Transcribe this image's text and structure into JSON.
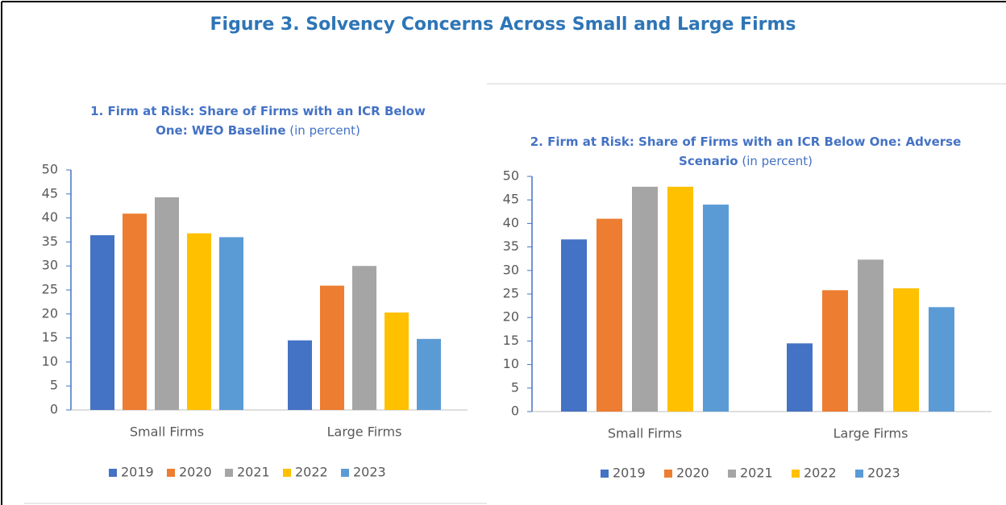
{
  "title": "Figure 3. Solvency Concerns Across Small and Large Firms",
  "chart_data": [
    {
      "type": "bar",
      "title": "1. Firm at Risk: Share of Firms with an ICR Below One: WEO Baseline",
      "subtitle": "(in percent)",
      "categories": [
        "Small Firms",
        "Large Firms"
      ],
      "series": [
        {
          "name": "2019",
          "color": "#4472c4",
          "values": [
            36.4,
            14.5
          ]
        },
        {
          "name": "2020",
          "color": "#ed7d31",
          "values": [
            40.9,
            25.9
          ]
        },
        {
          "name": "2021",
          "color": "#a5a5a5",
          "values": [
            44.3,
            30.0
          ]
        },
        {
          "name": "2022",
          "color": "#ffc000",
          "values": [
            36.8,
            20.3
          ]
        },
        {
          "name": "2023",
          "color": "#5b9bd5",
          "values": [
            36.0,
            14.8
          ]
        }
      ],
      "ylim": [
        0,
        50
      ],
      "yticks": [
        0,
        5,
        10,
        15,
        20,
        25,
        30,
        35,
        40,
        45,
        50
      ],
      "legend": "bottom"
    },
    {
      "type": "bar",
      "title": "2. Firm at Risk: Share of Firms with an ICR Below One: Adverse Scenario",
      "subtitle": "(in percent)",
      "categories": [
        "Small Firms",
        "Large Firms"
      ],
      "series": [
        {
          "name": "2019",
          "color": "#4472c4",
          "values": [
            36.6,
            14.5
          ]
        },
        {
          "name": "2020",
          "color": "#ed7d31",
          "values": [
            41.0,
            25.8
          ]
        },
        {
          "name": "2021",
          "color": "#a5a5a5",
          "values": [
            47.8,
            32.3
          ]
        },
        {
          "name": "2022",
          "color": "#ffc000",
          "values": [
            47.8,
            26.2
          ]
        },
        {
          "name": "2023",
          "color": "#5b9bd5",
          "values": [
            44.0,
            22.2
          ]
        }
      ],
      "ylim": [
        0,
        50
      ],
      "yticks": [
        0,
        5,
        10,
        15,
        20,
        25,
        30,
        35,
        40,
        45,
        50
      ],
      "legend": "bottom"
    }
  ]
}
